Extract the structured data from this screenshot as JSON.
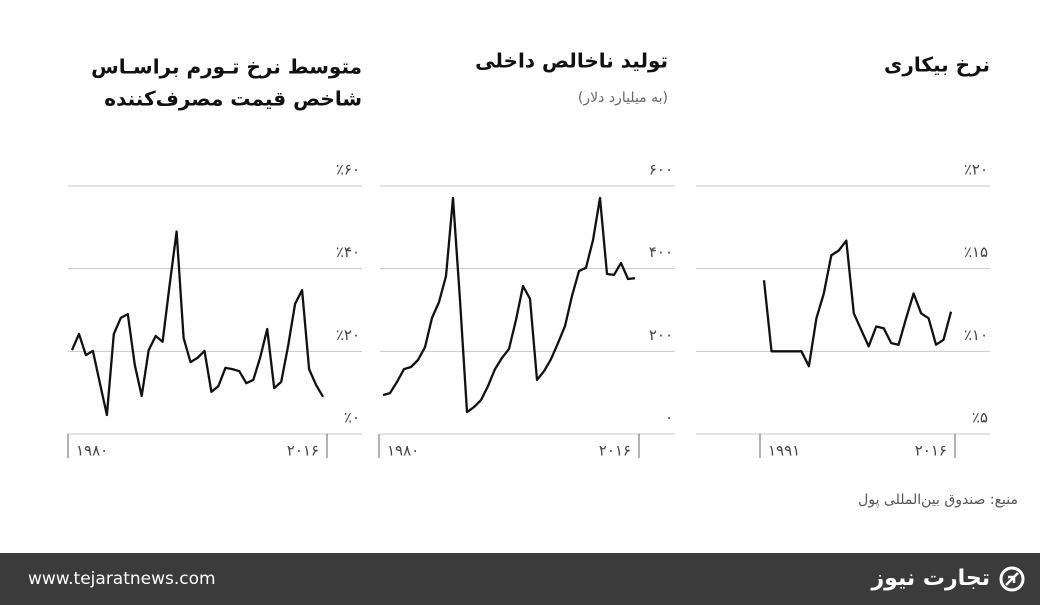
{
  "chart_data": [
    {
      "type": "line",
      "title": [
        "متوسط نرخ تـورم براسـاس",
        "شاخص قیمت مصرف‌کننده"
      ],
      "x": [
        1980,
        1981,
        1982,
        1983,
        1984,
        1985,
        1986,
        1987,
        1988,
        1989,
        1990,
        1991,
        1992,
        1993,
        1994,
        1995,
        1996,
        1997,
        1998,
        1999,
        2000,
        2001,
        2002,
        2003,
        2004,
        2005,
        2006,
        2007,
        2008,
        2009,
        2010,
        2011,
        2012,
        2013,
        2014,
        2015,
        2016
      ],
      "values": [
        20.3,
        24.2,
        19.1,
        20.1,
        12.3,
        4.6,
        24.2,
        28.1,
        29.0,
        16.7,
        9.2,
        20.3,
        23.7,
        22.3,
        36.0,
        49.0,
        23.2,
        17.4,
        18.4,
        20.1,
        10.2,
        11.6,
        16.0,
        15.7,
        15.2,
        12.3,
        13.1,
        18.6,
        25.4,
        11.1,
        12.6,
        21.3,
        31.5,
        34.8,
        15.7,
        11.9,
        9.0
      ],
      "color": "#111111",
      "xlim": [
        1980,
        2016
      ],
      "xticks": [
        {
          "value": 1980,
          "label": "۱۹۸۰"
        },
        {
          "value": 2016,
          "label": "۲۰۱۶"
        }
      ],
      "ylim": [
        0,
        60
      ],
      "yticks": [
        {
          "value": 0,
          "label": "٪۰"
        },
        {
          "value": 20,
          "label": "٪۲۰"
        },
        {
          "value": 40,
          "label": "٪۴۰"
        },
        {
          "value": 60,
          "label": "٪۶۰"
        }
      ],
      "grid": true
    },
    {
      "type": "line",
      "title": [
        "تولید ناخالص داخلی"
      ],
      "subtitle": "(به میلیارد دلار)",
      "x": [
        1980,
        1981,
        1982,
        1983,
        1984,
        1985,
        1986,
        1987,
        1988,
        1989,
        1990,
        1991,
        1992,
        1993,
        1994,
        1995,
        1996,
        1997,
        1998,
        1999,
        2000,
        2001,
        2002,
        2003,
        2004,
        2005,
        2006,
        2007,
        2008,
        2009,
        2010,
        2011,
        2012,
        2013,
        2014,
        2015,
        2016
      ],
      "values": [
        94,
        99,
        126,
        157,
        162,
        179,
        210,
        281,
        319,
        382,
        571,
        324,
        53,
        65,
        82,
        116,
        157,
        184,
        206,
        276,
        358,
        327,
        131,
        152,
        181,
        220,
        261,
        334,
        394,
        402,
        469,
        571,
        387,
        385,
        414,
        375,
        377
      ],
      "color": "#111111",
      "xlim": [
        1980,
        2016
      ],
      "xticks": [
        {
          "value": 1980,
          "label": "۱۹۸۰"
        },
        {
          "value": 2016,
          "label": "۲۰۱۶"
        }
      ],
      "ylim": [
        0,
        600
      ],
      "yticks": [
        {
          "value": 0,
          "label": "۰"
        },
        {
          "value": 200,
          "label": "۲۰۰"
        },
        {
          "value": 400,
          "label": "۴۰۰"
        },
        {
          "value": 600,
          "label": "۶۰۰"
        }
      ],
      "grid": true
    },
    {
      "type": "line",
      "title": [
        "نرخ بیکاری"
      ],
      "x": [
        1991,
        1992,
        1993,
        1994,
        1995,
        1996,
        1997,
        1998,
        1999,
        2000,
        2001,
        2002,
        2003,
        2004,
        2005,
        2006,
        2007,
        2008,
        2009,
        2010,
        2011,
        2012,
        2013,
        2014,
        2015,
        2016
      ],
      "values": [
        14.3,
        10.0,
        10.0,
        10.0,
        10.0,
        10.0,
        9.1,
        12.0,
        13.5,
        15.8,
        16.1,
        16.7,
        12.3,
        11.3,
        10.3,
        11.5,
        11.4,
        10.5,
        10.4,
        12.0,
        13.5,
        12.3,
        12.0,
        10.4,
        10.7,
        12.4
      ],
      "color": "#111111",
      "xlim": [
        1991,
        2016
      ],
      "xticks": [
        {
          "value": 1991,
          "label": "۱۹۹۱"
        },
        {
          "value": 2016,
          "label": "۲۰۱۶"
        }
      ],
      "ylim": [
        5,
        20
      ],
      "yticks": [
        {
          "value": 5,
          "label": "٪۵"
        },
        {
          "value": 10,
          "label": "٪۱۰"
        },
        {
          "value": 15,
          "label": "٪۱۵"
        },
        {
          "value": 20,
          "label": "٪۲۰"
        }
      ],
      "grid": true
    }
  ],
  "source": "منبع: صندوق بین‌المللی پول",
  "footer": {
    "url": "www.tejaratnews.com",
    "brand": "تجارت نیوز"
  }
}
